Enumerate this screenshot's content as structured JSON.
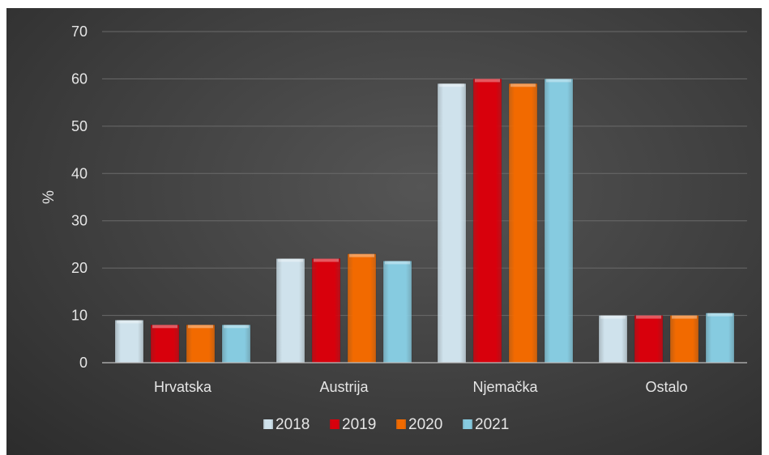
{
  "chart_data": {
    "type": "bar",
    "title": "",
    "xlabel": "",
    "ylabel": "%",
    "ylim": [
      0,
      70
    ],
    "yticks": [
      0,
      10,
      20,
      30,
      40,
      50,
      60,
      70
    ],
    "ytick_labels": [
      "0",
      "10",
      "20",
      "30",
      "40",
      "50",
      "60",
      "70"
    ],
    "grid": true,
    "legend_position": "bottom",
    "categories": [
      "Hrvatska",
      "Austrija",
      "Njemačka",
      "Ostalo"
    ],
    "series": [
      {
        "name": "2018",
        "values": [
          9,
          22,
          59,
          10
        ],
        "color": "#cfe2ec"
      },
      {
        "name": "2019",
        "values": [
          8,
          22,
          60,
          10
        ],
        "color": "#d8000c"
      },
      {
        "name": "2020",
        "values": [
          8,
          23,
          59,
          10
        ],
        "color": "#f26a00"
      },
      {
        "name": "2021",
        "values": [
          8,
          21.5,
          60,
          10.5
        ],
        "color": "#86cbe0"
      }
    ]
  }
}
